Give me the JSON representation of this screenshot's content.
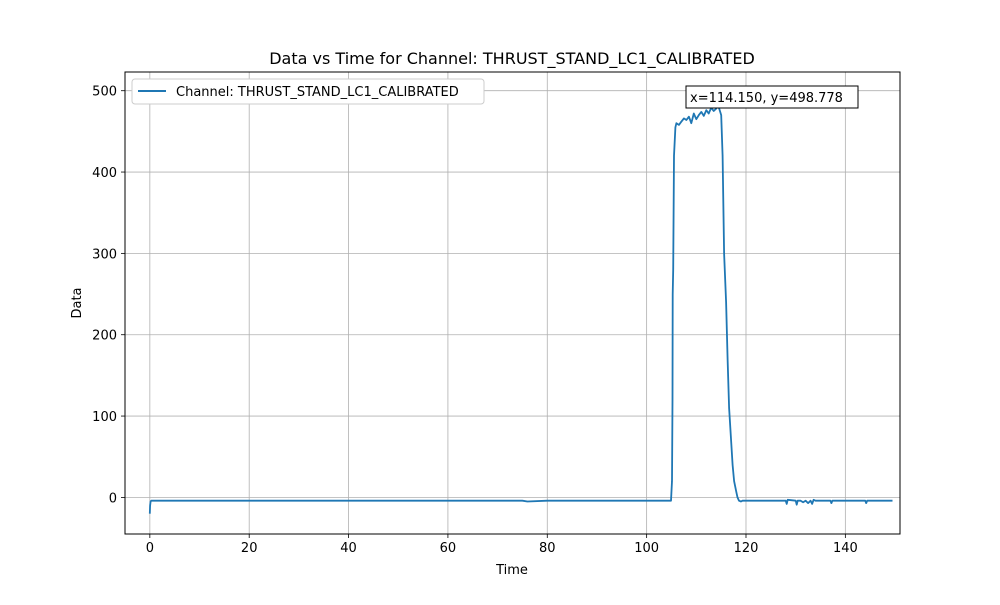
{
  "chart_data": {
    "type": "line",
    "title": "Data vs Time for Channel: THRUST_STAND_LC1_CALIBRATED",
    "xlabel": "Time",
    "ylabel": "Data",
    "xlim": [
      -5,
      151
    ],
    "ylim": [
      -45,
      523
    ],
    "xticks": [
      0,
      20,
      40,
      60,
      80,
      100,
      120,
      140
    ],
    "yticks": [
      0,
      100,
      200,
      300,
      400,
      500
    ],
    "grid": true,
    "legend_position": "top-left",
    "annotation": {
      "text": "x=114.150, y=498.778",
      "x": 114.15,
      "y": 498.778
    },
    "series": [
      {
        "name": "Channel: THRUST_STAND_LC1_CALIBRATED",
        "color": "#1f77b4",
        "x": [
          0,
          0.05,
          0.15,
          0.3,
          2,
          20,
          40,
          60,
          75,
          76,
          80,
          95,
          104.9,
          105.1,
          105.2,
          105.25,
          105.35,
          105.5,
          105.8,
          106,
          106.5,
          107,
          107.5,
          108,
          108.5,
          109,
          109.5,
          110,
          110.5,
          111,
          111.5,
          112,
          112.5,
          113,
          113.5,
          114,
          114.15,
          114.5,
          115,
          115.3,
          115.6,
          116,
          116.3,
          116.6,
          117,
          117.3,
          117.6,
          118,
          118.3,
          118.6,
          119,
          119.3,
          119.6,
          120,
          121,
          123,
          125,
          128,
          128.2,
          128.4,
          130,
          130.2,
          130.4,
          131,
          131.5,
          132,
          132.5,
          133,
          133.3,
          133.6,
          134,
          136,
          137,
          137.2,
          137.4,
          140,
          144,
          144.2,
          144.4,
          146,
          149.5
        ],
        "y": [
          -20,
          -10,
          -5,
          -4,
          -4,
          -4,
          -4,
          -4,
          -4,
          -5,
          -4,
          -4,
          -4,
          20,
          120,
          250,
          280,
          420,
          455,
          460,
          458,
          462,
          466,
          464,
          468,
          460,
          472,
          465,
          470,
          474,
          469,
          476,
          472,
          479,
          475,
          478,
          498.778,
          480,
          470,
          420,
          300,
          240,
          170,
          110,
          70,
          40,
          20,
          8,
          0,
          -4,
          -5,
          -4,
          -4,
          -4,
          -4,
          -4,
          -4,
          -4,
          -8,
          -3,
          -4,
          -9,
          -4,
          -4,
          -6,
          -4,
          -7,
          -4,
          -8,
          -3,
          -4,
          -4,
          -4,
          -7,
          -4,
          -4,
          -4,
          -7,
          -4,
          -4,
          -4
        ]
      }
    ]
  }
}
